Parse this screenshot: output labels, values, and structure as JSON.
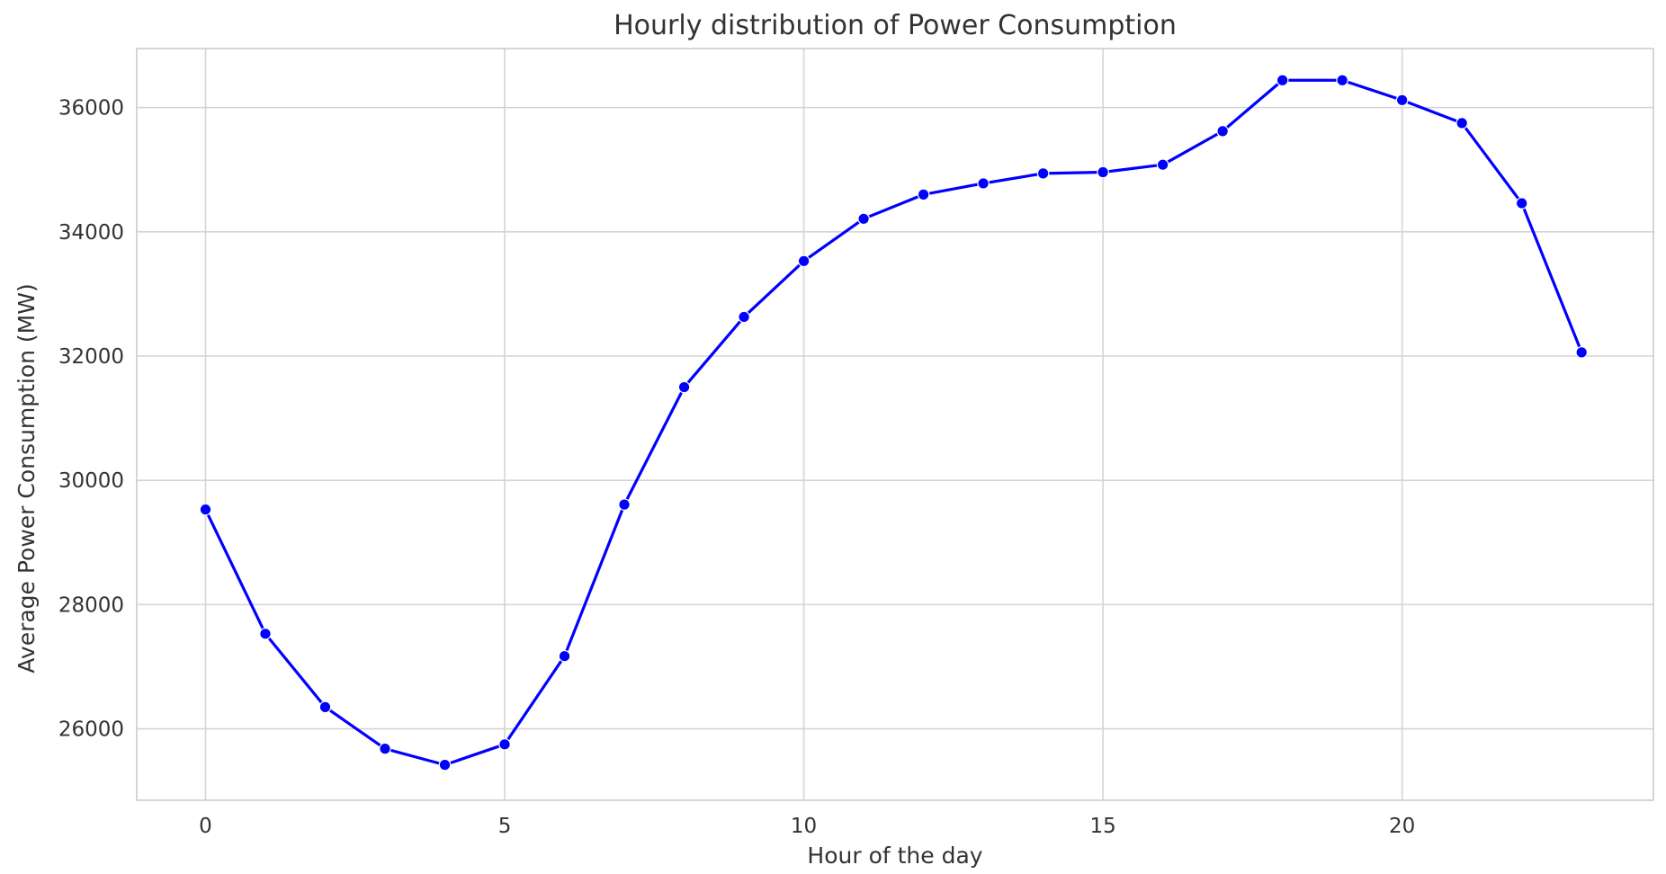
{
  "chart_data": {
    "type": "line",
    "title": "Hourly distribution of Power Consumption",
    "xlabel": "Hour of the day",
    "ylabel": "Average Power Consumption (MW)",
    "xlim": [
      -1.15,
      24.2
    ],
    "ylim": [
      24850,
      36950
    ],
    "xticks": [
      0,
      5,
      10,
      15,
      20
    ],
    "yticks": [
      26000,
      28000,
      30000,
      32000,
      34000,
      36000
    ],
    "grid": true,
    "legend": "none",
    "series": [
      {
        "color": "#0000ff",
        "marker": "circle",
        "x": [
          0,
          1,
          2,
          3,
          4,
          5,
          6,
          7,
          8,
          9,
          10,
          11,
          12,
          13,
          14,
          15,
          16,
          17,
          18,
          19,
          20,
          21,
          22,
          23
        ],
        "values": [
          29530,
          27530,
          26350,
          25680,
          25420,
          25750,
          27170,
          29610,
          31500,
          32630,
          33530,
          34210,
          34600,
          34780,
          34940,
          34960,
          35080,
          35620,
          36440,
          36440,
          36120,
          35750,
          34460,
          32060
        ]
      }
    ]
  }
}
